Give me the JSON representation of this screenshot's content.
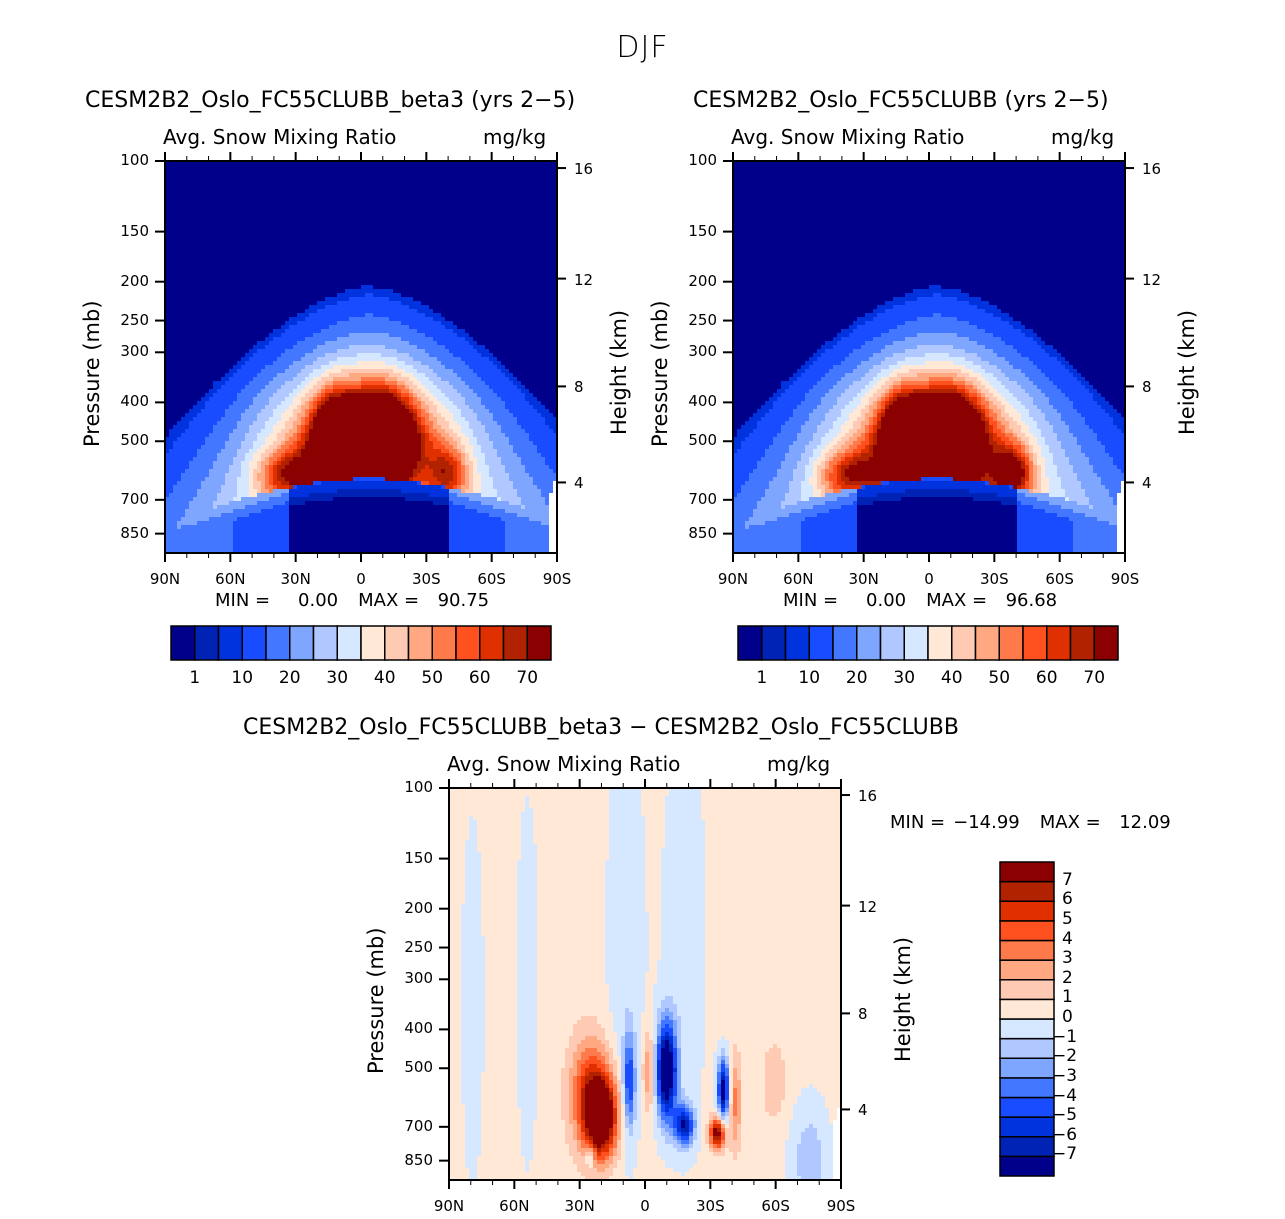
{
  "figure_title": "DJF",
  "chart_data": [
    {
      "type": "heatmap",
      "title": "CESM2B2_Oslo_FC55CLUBB_beta3 (yrs 2-5)",
      "subtitle_left": "Avg. Snow Mixing Ratio",
      "subtitle_right": "mg/kg",
      "xlabel": "",
      "ylabel": "Pressure (mb)",
      "ylabel_right": "Height (km)",
      "x_ticks": [
        "90N",
        "60N",
        "30N",
        "0",
        "30S",
        "60S",
        "90S"
      ],
      "x_range": [
        90,
        -90
      ],
      "y_ticks": [
        "100",
        "150",
        "200",
        "250",
        "300",
        "400",
        "500",
        "700",
        "850"
      ],
      "y_range_mb": [
        100,
        950
      ],
      "y_ticks_right": [
        "16",
        "12",
        "8",
        "4"
      ],
      "min_label": "MIN =",
      "min_value": "0.00",
      "max_label": "MAX =",
      "max_value": "90.75",
      "colorbar_labels": [
        "1",
        "10",
        "20",
        "30",
        "40",
        "50",
        "60",
        "70"
      ],
      "field": "full",
      "max": 90.75
    },
    {
      "type": "heatmap",
      "title": "CESM2B2_Oslo_FC55CLUBB (yrs 2-5)",
      "subtitle_left": "Avg. Snow Mixing Ratio",
      "subtitle_right": "mg/kg",
      "xlabel": "",
      "ylabel": "Pressure (mb)",
      "ylabel_right": "Height (km)",
      "x_ticks": [
        "90N",
        "60N",
        "30N",
        "0",
        "30S",
        "60S",
        "90S"
      ],
      "x_range": [
        90,
        -90
      ],
      "y_ticks": [
        "100",
        "150",
        "200",
        "250",
        "300",
        "400",
        "500",
        "700",
        "850"
      ],
      "y_range_mb": [
        100,
        950
      ],
      "y_ticks_right": [
        "16",
        "12",
        "8",
        "4"
      ],
      "min_label": "MIN =",
      "min_value": "0.00",
      "max_label": "MAX =",
      "max_value": "96.68",
      "colorbar_labels": [
        "1",
        "10",
        "20",
        "30",
        "40",
        "50",
        "60",
        "70"
      ],
      "field": "full",
      "max": 96.68
    },
    {
      "type": "heatmap",
      "title": "CESM2B2_Oslo_FC55CLUBB_beta3 - CESM2B2_Oslo_FC55CLUBB",
      "subtitle_left": "Avg. Snow Mixing Ratio",
      "subtitle_right": "mg/kg",
      "xlabel": "",
      "ylabel": "Pressure (mb)",
      "ylabel_right": "Height (km)",
      "x_ticks": [
        "90N",
        "60N",
        "30N",
        "0",
        "30S",
        "60S",
        "90S"
      ],
      "x_range": [
        90,
        -90
      ],
      "y_ticks": [
        "100",
        "150",
        "200",
        "250",
        "300",
        "400",
        "500",
        "700",
        "850"
      ],
      "y_range_mb": [
        100,
        950
      ],
      "y_ticks_right": [
        "16",
        "12",
        "8",
        "4"
      ],
      "min_label": "MIN =",
      "min_value": "-14.99",
      "max_label": "MAX =",
      "max_value": "12.09",
      "colorbar_labels": [
        "7",
        "6",
        "5",
        "4",
        "3",
        "2",
        "1",
        "0",
        "-1",
        "-2",
        "-3",
        "-4",
        "-5",
        "-6",
        "-7"
      ],
      "field": "diff",
      "max": 12.09
    }
  ],
  "colormap": {
    "full_levels": [
      1,
      5,
      10,
      15,
      20,
      25,
      30,
      35,
      40,
      45,
      50,
      55,
      60,
      65,
      70
    ],
    "diff_levels": [
      -7,
      -6,
      -5,
      -4,
      -3,
      -2,
      -1,
      0,
      1,
      2,
      3,
      4,
      5,
      6,
      7
    ],
    "colors": [
      "#00008b",
      "#0022b5",
      "#0033dd",
      "#1a4cff",
      "#4477ff",
      "#7fa6ff",
      "#b0c8ff",
      "#d5e8ff",
      "#ffe8d6",
      "#ffcab4",
      "#ffa882",
      "#ff7a4a",
      "#ff5020",
      "#e03000",
      "#b02200",
      "#8b0000"
    ]
  }
}
